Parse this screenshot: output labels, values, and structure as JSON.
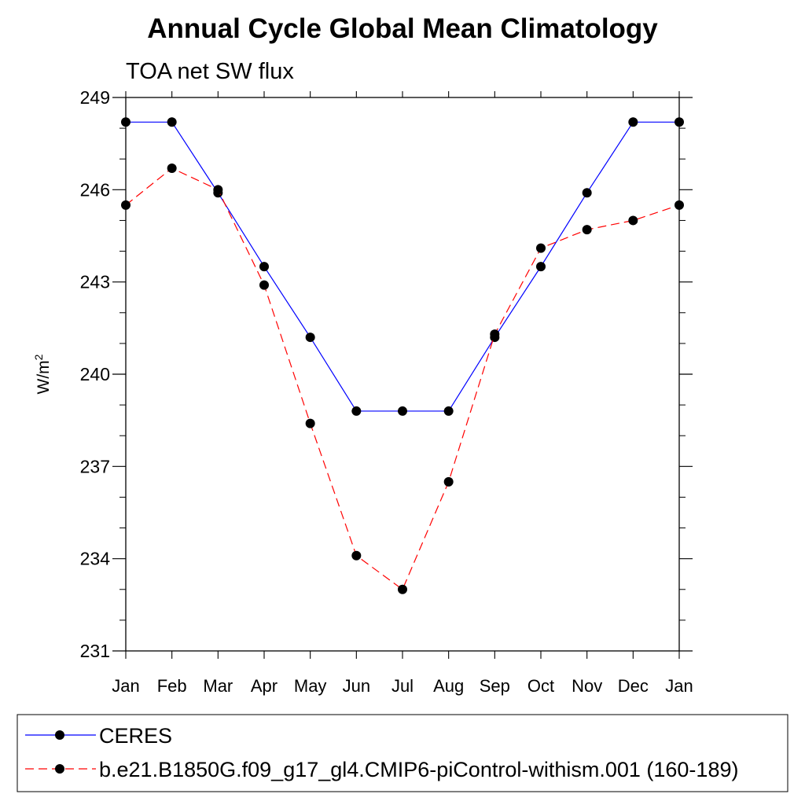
{
  "chart_data": {
    "type": "line",
    "title": "Annual Cycle Global Mean Climatology",
    "subtitle": "TOA net SW flux",
    "ylabel": "W/m",
    "ylabel_superscript": "2",
    "categories": [
      "Jan",
      "Feb",
      "Mar",
      "Apr",
      "May",
      "Jun",
      "Jul",
      "Aug",
      "Sep",
      "Oct",
      "Nov",
      "Dec",
      "Jan"
    ],
    "ylim": [
      231,
      249
    ],
    "yticks": [
      231,
      234,
      237,
      240,
      243,
      246,
      249
    ],
    "y_minor_step": 1,
    "grid": false,
    "legend_position": "bottom",
    "series": [
      {
        "name": "CERES",
        "color": "#0000ff",
        "dash": "solid",
        "marker": "filled-circle",
        "values": [
          248.2,
          248.2,
          245.9,
          243.5,
          241.2,
          238.8,
          238.8,
          238.8,
          241.2,
          243.5,
          245.9,
          248.2,
          248.2
        ]
      },
      {
        "name": "b.e21.B1850G.f09_g17_gl4.CMIP6-piControl-withism.001 (160-189)",
        "color": "#ff0000",
        "dash": "dashed",
        "marker": "filled-circle",
        "values": [
          245.5,
          246.7,
          246.0,
          242.9,
          238.4,
          234.1,
          233.0,
          236.5,
          241.3,
          244.1,
          244.7,
          245.0,
          245.5
        ]
      }
    ]
  }
}
